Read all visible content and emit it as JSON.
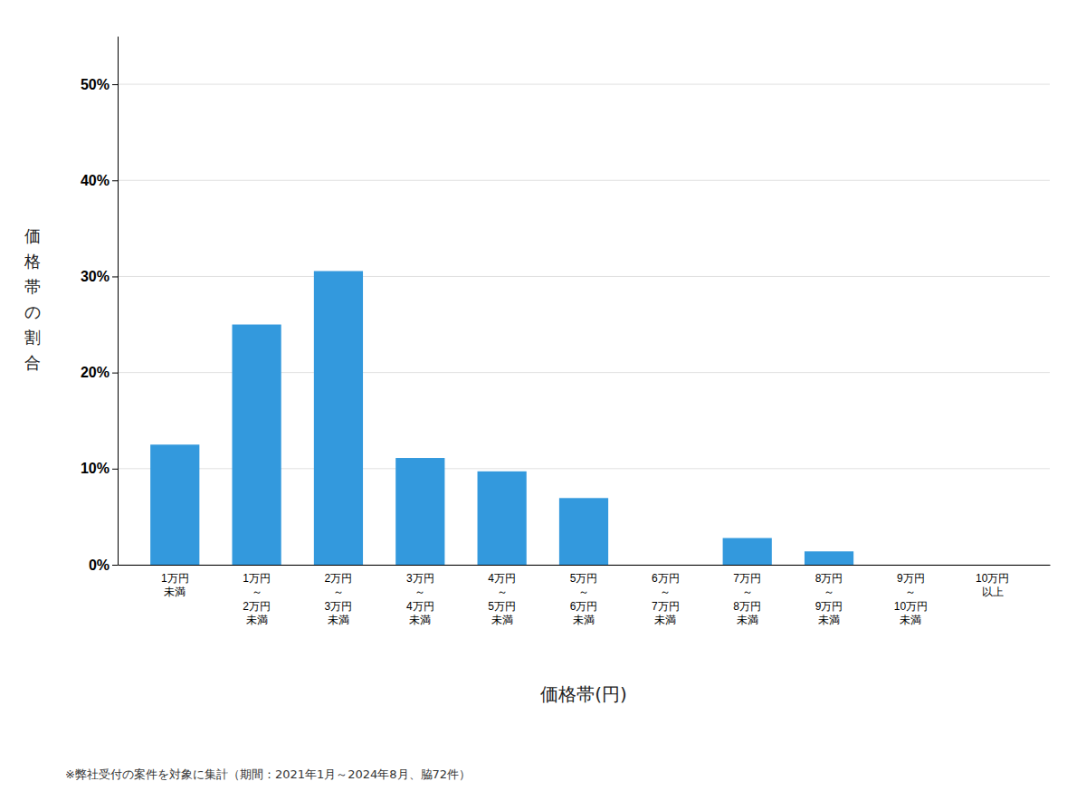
{
  "chart_data": {
    "type": "bar",
    "categories": [
      "1万円\n未満",
      "1万円\n～\n2万円\n未満",
      "2万円\n～\n3万円\n未満",
      "3万円\n～\n4万円\n未満",
      "4万円\n～\n5万円\n未満",
      "5万円\n～\n6万円\n未満",
      "6万円\n～\n7万円\n未満",
      "7万円\n～\n8万円\n未満",
      "8万円\n～\n9万円\n未満",
      "9万円\n～\n10万円\n未満",
      "10万円\n以上"
    ],
    "values": [
      0.125,
      0.25,
      0.3056,
      0.1111,
      0.0972,
      0.0694,
      0.0,
      0.0278,
      0.0139,
      0.0,
      0.0
    ],
    "color": "#3399dd",
    "ylabel": "価格帯の割合",
    "xlabel": "価格帯(円)",
    "ylim": [
      0,
      0.55
    ],
    "yticks": [
      {
        "value": 0.0,
        "label": "0%"
      },
      {
        "value": 0.1,
        "label": "10%"
      },
      {
        "value": 0.2,
        "label": "20%"
      },
      {
        "value": 0.3,
        "label": "30%"
      },
      {
        "value": 0.4,
        "label": "40%"
      },
      {
        "value": 0.5,
        "label": "50%"
      }
    ],
    "grid": true,
    "footnote": "※弊社受付の案件を対象に集計（期間：2021年1月～2024年8月、脇72件）"
  }
}
